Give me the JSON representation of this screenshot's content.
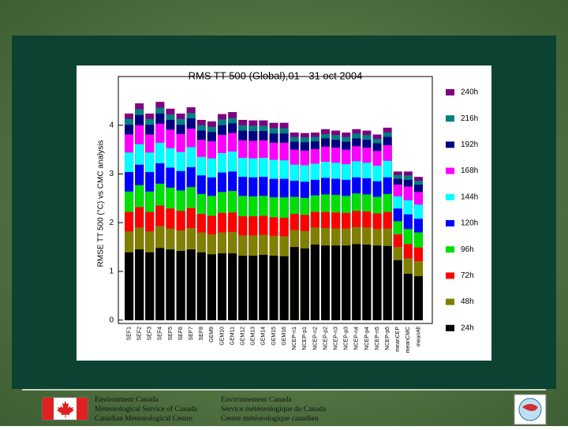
{
  "chart_data": {
    "type": "bar",
    "title": "RMS TT 500 (Global),01 - 31 oct 2004",
    "y_label": "RMSE TT 500 (°C) vs CMC analysis",
    "categories": [
      "SEF1",
      "SEF2",
      "SEF3",
      "SEF4",
      "SEF5",
      "SEF6",
      "SEF7",
      "SEF8",
      "GEM9",
      "GEM10",
      "GEM11",
      "GEM12",
      "GEM13",
      "GEM14",
      "GEM15",
      "GEM16",
      "NCEP-n1",
      "NCEP-p1",
      "NCEP-n2",
      "NCEP-p2",
      "NCEP-n3",
      "NCEP-p3",
      "NCEP-n4",
      "NCEP-p4",
      "NCEP-n5",
      "NCEP-p5",
      "meanCEP",
      "meanCMC",
      "meanAll"
    ],
    "ylim": [
      -0.07,
      5
    ],
    "yticks": [
      0,
      1,
      2,
      3,
      4
    ],
    "legend": "right",
    "series": [
      {
        "name": "24h",
        "color": "#000000",
        "values": [
          1.39,
          1.45,
          1.39,
          1.48,
          1.45,
          1.42,
          1.45,
          1.39,
          1.35,
          1.37,
          1.37,
          1.32,
          1.32,
          1.34,
          1.32,
          1.31,
          1.5,
          1.47,
          1.55,
          1.53,
          1.53,
          1.53,
          1.56,
          1.55,
          1.53,
          1.52,
          1.23,
          0.95,
          0.9
        ]
      },
      {
        "name": "48h",
        "color": "#808000",
        "values": [
          1.82,
          1.9,
          1.82,
          1.93,
          1.88,
          1.84,
          1.89,
          1.8,
          1.76,
          1.8,
          1.81,
          1.74,
          1.74,
          1.75,
          1.73,
          1.72,
          1.85,
          1.83,
          1.9,
          1.89,
          1.88,
          1.88,
          1.91,
          1.9,
          1.87,
          1.88,
          1.5,
          1.27,
          1.21
        ]
      },
      {
        "name": "72h",
        "color": "#ff0000",
        "values": [
          2.22,
          2.32,
          2.22,
          2.35,
          2.29,
          2.24,
          2.3,
          2.18,
          2.14,
          2.2,
          2.21,
          2.13,
          2.13,
          2.14,
          2.11,
          2.1,
          2.18,
          2.16,
          2.22,
          2.22,
          2.21,
          2.2,
          2.24,
          2.23,
          2.19,
          2.22,
          1.76,
          1.56,
          1.49
        ]
      },
      {
        "name": "96h",
        "color": "#00e000",
        "values": [
          2.64,
          2.77,
          2.64,
          2.8,
          2.72,
          2.66,
          2.73,
          2.59,
          2.55,
          2.63,
          2.65,
          2.55,
          2.54,
          2.55,
          2.52,
          2.52,
          2.53,
          2.51,
          2.56,
          2.58,
          2.57,
          2.55,
          2.6,
          2.58,
          2.53,
          2.59,
          2.03,
          1.87,
          1.8
        ]
      },
      {
        "name": "120h",
        "color": "#0000ff",
        "values": [
          3.04,
          3.19,
          3.04,
          3.22,
          3.13,
          3.06,
          3.14,
          2.97,
          2.93,
          3.03,
          3.05,
          2.94,
          2.93,
          2.94,
          2.9,
          2.9,
          2.86,
          2.84,
          2.88,
          2.92,
          2.9,
          2.88,
          2.93,
          2.91,
          2.85,
          2.93,
          2.29,
          2.17,
          2.08
        ]
      },
      {
        "name": "144h",
        "color": "#00ffff",
        "values": [
          3.44,
          3.61,
          3.44,
          3.64,
          3.53,
          3.45,
          3.55,
          3.35,
          3.32,
          3.43,
          3.46,
          3.33,
          3.32,
          3.33,
          3.29,
          3.28,
          3.19,
          3.18,
          3.21,
          3.25,
          3.23,
          3.2,
          3.26,
          3.23,
          3.17,
          3.27,
          2.54,
          2.46,
          2.37
        ]
      },
      {
        "name": "168h",
        "color": "#ff00ff",
        "values": [
          3.81,
          4.0,
          3.81,
          4.03,
          3.91,
          3.82,
          3.93,
          3.7,
          3.67,
          3.8,
          3.84,
          3.69,
          3.68,
          3.69,
          3.64,
          3.64,
          3.5,
          3.48,
          3.51,
          3.56,
          3.54,
          3.5,
          3.57,
          3.54,
          3.47,
          3.59,
          2.78,
          2.74,
          2.63
        ]
      },
      {
        "name": "192h",
        "color": "#000080",
        "values": [
          4.01,
          4.21,
          4.01,
          4.24,
          4.11,
          4.01,
          4.14,
          3.89,
          3.86,
          4.0,
          4.04,
          3.89,
          3.88,
          3.88,
          3.83,
          3.83,
          3.66,
          3.65,
          3.67,
          3.73,
          3.7,
          3.66,
          3.73,
          3.7,
          3.63,
          3.76,
          2.9,
          2.88,
          2.78
        ]
      },
      {
        "name": "216h",
        "color": "#008080",
        "values": [
          4.13,
          4.33,
          4.13,
          4.36,
          4.22,
          4.13,
          4.25,
          4.0,
          3.97,
          4.12,
          4.15,
          4.0,
          3.99,
          3.99,
          3.94,
          3.94,
          3.76,
          3.75,
          3.76,
          3.82,
          3.8,
          3.76,
          3.83,
          3.8,
          3.72,
          3.85,
          2.98,
          2.97,
          2.86
        ]
      },
      {
        "name": "240h",
        "color": "#800080",
        "values": [
          4.24,
          4.45,
          4.24,
          4.48,
          4.34,
          4.24,
          4.37,
          4.11,
          4.08,
          4.23,
          4.27,
          4.11,
          4.1,
          4.1,
          4.05,
          4.05,
          3.85,
          3.84,
          3.85,
          3.92,
          3.89,
          3.85,
          3.92,
          3.89,
          3.81,
          3.95,
          3.05,
          3.05,
          2.94
        ]
      }
    ]
  },
  "footer": {
    "english": [
      "Environment Canada",
      "Meteorological Service of Canada",
      "Canadian Meteorological Centre"
    ],
    "french": [
      "Environnement Canada",
      "Service météorologique du Canada",
      "Centre météorologique canadien"
    ]
  }
}
